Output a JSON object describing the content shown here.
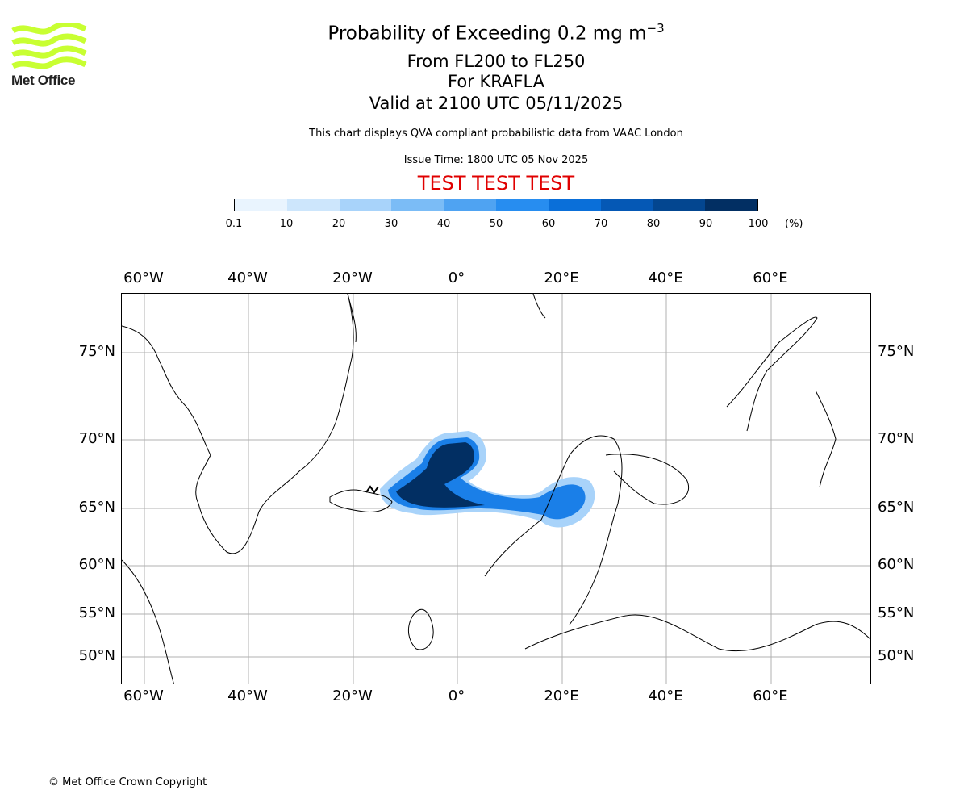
{
  "logo": {
    "text": "Met Office",
    "color": "#c8ff32"
  },
  "title": {
    "line1_main": "Probability of Exceeding 0.2 mg m",
    "line1_sup": "−3",
    "line2": "From FL200 to FL250",
    "line3": "For KRAFLA",
    "line4": "Valid at 2100 UTC 05/11/2025"
  },
  "subtitle": {
    "description": "This chart displays QVA compliant probabilistic data from VAAC London",
    "issue_time": "Issue Time: 1800 UTC 05 Nov 2025",
    "test_banner": "TEST TEST TEST"
  },
  "colorbar": {
    "ticks": [
      "0.1",
      "10",
      "20",
      "30",
      "40",
      "50",
      "60",
      "70",
      "80",
      "90",
      "100"
    ],
    "unit": "(%)",
    "colors": [
      "#e9f4fe",
      "#cde6fc",
      "#a8d3fa",
      "#7bbcf6",
      "#4fa3f2",
      "#278df0",
      "#0a6fd9",
      "#0558b5",
      "#034690",
      "#022f63"
    ]
  },
  "map": {
    "top_lon_labels": [
      "60°W",
      "40°W",
      "20°W",
      "0°",
      "20°E",
      "40°E",
      "60°E"
    ],
    "bottom_lon_labels": [
      "60°W",
      "40°W",
      "20°W",
      "0°",
      "20°E",
      "40°E",
      "60°E"
    ],
    "left_lat_labels": [
      "75°N",
      "70°N",
      "65°N",
      "60°N",
      "55°N",
      "50°N"
    ],
    "right_lat_labels": [
      "75°N",
      "70°N",
      "65°N",
      "60°N",
      "55°N",
      "50°N"
    ],
    "volcano_marker_color": "#000000",
    "plume_color_dark": "#022f63",
    "plume_color_mid": "#1a7fe8",
    "plume_color_light": "#a8d3fa"
  },
  "footer": {
    "copyright": "© Met Office Crown Copyright"
  }
}
